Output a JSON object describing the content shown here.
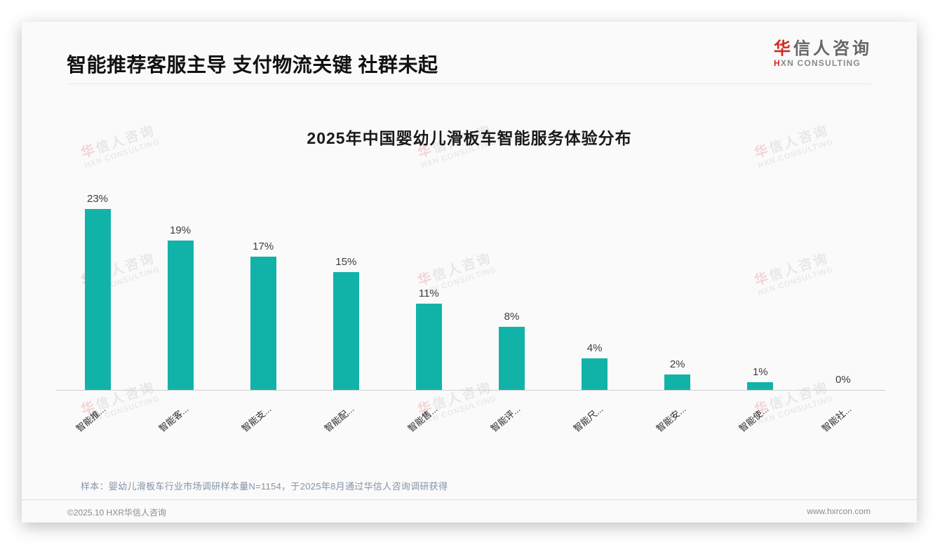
{
  "header": {
    "title": "智能推荐客服主导 支付物流关键 社群未起"
  },
  "logo": {
    "zh_first": "华",
    "zh_rest": "信人咨询",
    "en_first": "H",
    "en_rest": "XN CONSULTING"
  },
  "watermark": {
    "zh_first": "华",
    "zh_rest": "信人咨询",
    "en": "HXN CONSULTING"
  },
  "chart_data": {
    "type": "bar",
    "title": "2025年中国婴幼儿滑板车智能服务体验分布",
    "categories": [
      "智能推...",
      "智能客...",
      "智能支...",
      "智能配...",
      "智能售...",
      "智能评...",
      "智能尺...",
      "智能安...",
      "智能使...",
      "智能社..."
    ],
    "values": [
      23,
      19,
      17,
      15,
      11,
      8,
      4,
      2,
      1,
      0
    ],
    "value_labels": [
      "23%",
      "19%",
      "17%",
      "15%",
      "11%",
      "8%",
      "4%",
      "2%",
      "1%",
      "0%"
    ],
    "bar_color": "#11b3a9",
    "xlabel": "",
    "ylabel": "",
    "ylim": [
      0,
      25
    ],
    "grid": false,
    "legend": "none",
    "x_tick_rotation_deg": 40
  },
  "footnote": "样本：婴幼儿滑板车行业市场调研样本量N=1154，于2025年8月通过华信人咨询调研获得",
  "footer": {
    "left": "©2025.10 HXR华信人咨询",
    "right": "www.hxrcon.com"
  }
}
